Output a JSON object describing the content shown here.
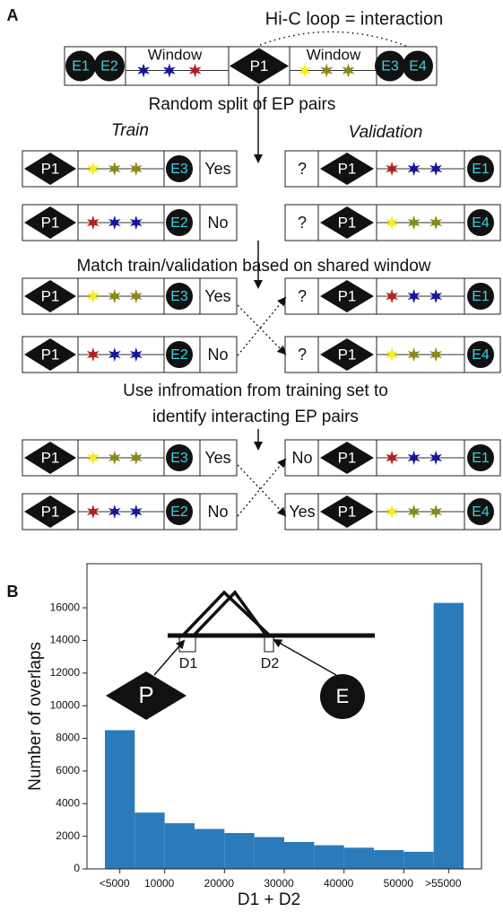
{
  "panel_a": {
    "label": "A",
    "annotation": "Hi-C loop = interaction",
    "top_row": {
      "left_enhancers": [
        "E1",
        "E2"
      ],
      "left_window": "Window",
      "promoter": "P1",
      "right_window": "Window",
      "right_enhancers": [
        "E3",
        "E4"
      ]
    },
    "step_1": "Random split of EP pairs",
    "train_heading": "Train",
    "validation_heading": "Validation",
    "step_2": "Match train/validation based on shared window",
    "step_3": [
      "Use infromation from training set to",
      "identify interacting EP pairs"
    ],
    "blocks": [
      {
        "train": [
          {
            "promoter": "P1",
            "enhancer": "E3",
            "label": "Yes"
          },
          {
            "promoter": "P1",
            "enhancer": "E2",
            "label": "No"
          }
        ],
        "validation": [
          {
            "label": "?",
            "promoter": "P1",
            "enhancer": "E1"
          },
          {
            "label": "?",
            "promoter": "P1",
            "enhancer": "E4"
          }
        ]
      },
      {
        "train": [
          {
            "promoter": "P1",
            "enhancer": "E3",
            "label": "Yes"
          },
          {
            "promoter": "P1",
            "enhancer": "E2",
            "label": "No"
          }
        ],
        "validation": [
          {
            "label": "?",
            "promoter": "P1",
            "enhancer": "E1"
          },
          {
            "label": "?",
            "promoter": "P1",
            "enhancer": "E4"
          }
        ]
      },
      {
        "train": [
          {
            "promoter": "P1",
            "enhancer": "E3",
            "label": "Yes"
          },
          {
            "promoter": "P1",
            "enhancer": "E2",
            "label": "No"
          }
        ],
        "validation": [
          {
            "label": "No",
            "promoter": "P1",
            "enhancer": "E1"
          },
          {
            "label": "Yes",
            "promoter": "P1",
            "enhancer": "E4"
          }
        ]
      }
    ]
  },
  "chart_data": {
    "type": "histogram",
    "panel_label": "B",
    "xlabel": "D1 + D2",
    "ylabel": "Number of overlaps",
    "bins": [
      0,
      5000,
      10000,
      15000,
      20000,
      25000,
      30000,
      35000,
      40000,
      45000,
      50000,
      55000,
      60000
    ],
    "values": [
      8500,
      3450,
      2800,
      2450,
      2200,
      1950,
      1650,
      1450,
      1300,
      1150,
      1050,
      16300
    ],
    "color": "#2b7bba",
    "xlim": [
      -3000,
      63000
    ],
    "ylim": [
      0,
      18700
    ],
    "xticks": [
      {
        "value": 2500,
        "label": "<5000"
      },
      10000,
      20000,
      30000,
      40000,
      50000,
      {
        "value": 57500,
        "label": ">55000"
      }
    ],
    "yticks": [
      0,
      2000,
      4000,
      6000,
      8000,
      10000,
      12000,
      14000,
      16000
    ],
    "grid": false,
    "annotations": {
      "d1": "D1",
      "d2": "D2",
      "promoter": "P",
      "enhancer": "E"
    }
  }
}
